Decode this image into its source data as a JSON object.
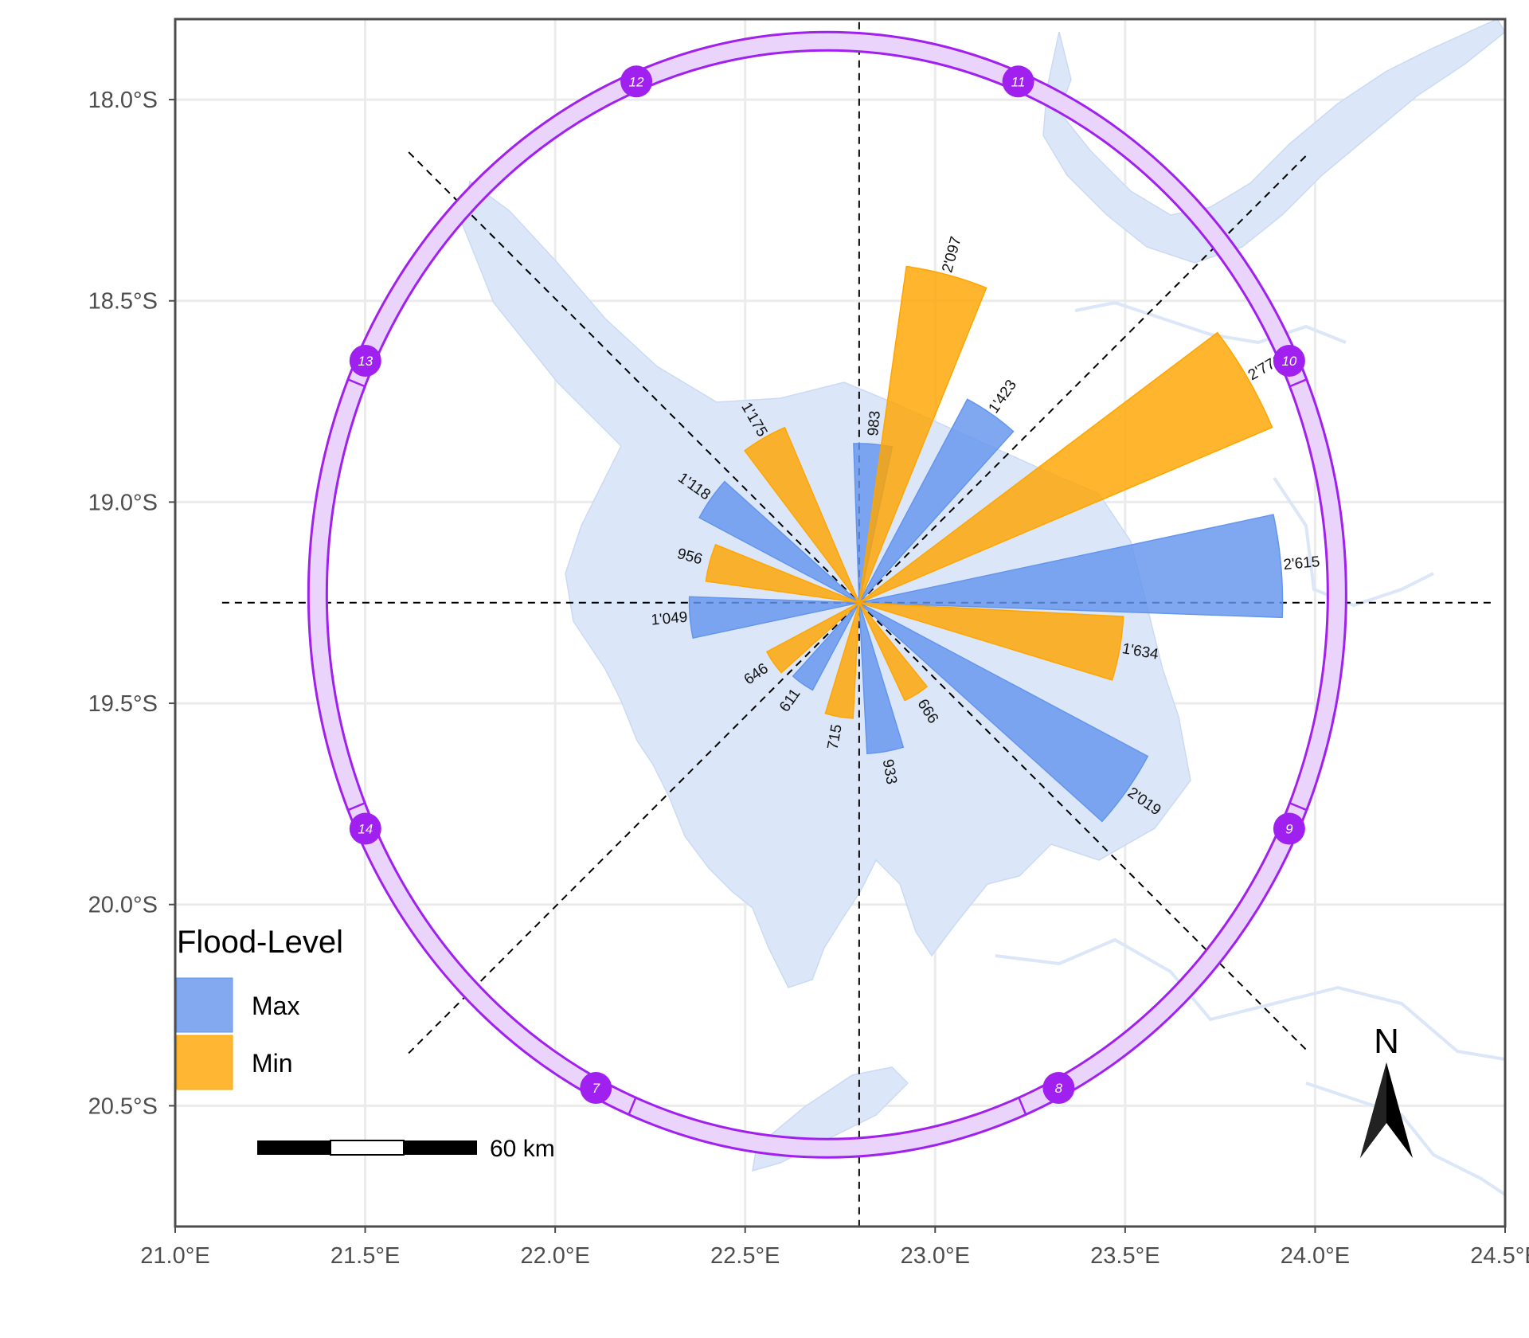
{
  "chart_data": {
    "type": "polar-bar-map",
    "x_axis": {
      "ticks": [
        "21.0°E",
        "21.5°E",
        "22.0°E",
        "22.5°E",
        "23.0°E",
        "23.5°E",
        "24.0°E",
        "24.5°E"
      ],
      "values": [
        21.0,
        21.5,
        22.0,
        22.5,
        23.0,
        23.5,
        24.0,
        24.5
      ],
      "range": [
        21.0,
        24.5
      ]
    },
    "y_axis": {
      "ticks": [
        "18.0°S",
        "18.5°S",
        "19.0°S",
        "19.5°S",
        "20.0°S",
        "20.5°S"
      ],
      "values": [
        -18.0,
        -18.5,
        -19.0,
        -19.5,
        -20.0,
        -20.5
      ],
      "range": [
        -20.8,
        -17.8
      ]
    },
    "grid": true,
    "center": {
      "lon": 22.8,
      "lat": -19.25
    },
    "bar_max_value": 3000,
    "month_ring_labels": [
      "7",
      "8",
      "9",
      "10",
      "11",
      "12",
      "13",
      "14"
    ],
    "series": [
      {
        "name": "Max",
        "color": "#6495ED",
        "bars": [
          {
            "dir": 5,
            "value": 983,
            "label": "983"
          },
          {
            "dir": 35,
            "value": 1423,
            "label": "1'423"
          },
          {
            "dir": 85,
            "value": 2615,
            "label": "2'615"
          },
          {
            "dir": 125,
            "value": 2019,
            "label": "2'019"
          },
          {
            "dir": 170,
            "value": 933,
            "label": "933"
          },
          {
            "dir": 215,
            "value": 611,
            "label": "611"
          },
          {
            "dir": 265,
            "value": 1049,
            "label": "1'049"
          },
          {
            "dir": 305,
            "value": 1118,
            "label": "1'118"
          }
        ]
      },
      {
        "name": "Min",
        "color": "#FFA500",
        "bars": [
          {
            "dir": 15,
            "value": 2097,
            "label": "2'097"
          },
          {
            "dir": 60,
            "value": 2771,
            "label": "2'771"
          },
          {
            "dir": 100,
            "value": 1634,
            "label": "1'634"
          },
          {
            "dir": 148,
            "value": 666,
            "label": "666"
          },
          {
            "dir": 190,
            "value": 715,
            "label": "715"
          },
          {
            "dir": 235,
            "value": 646,
            "label": "646"
          },
          {
            "dir": 285,
            "value": 956,
            "label": "956"
          },
          {
            "dir": 330,
            "value": 1175,
            "label": "1'175"
          }
        ]
      }
    ],
    "legend": {
      "title": "Flood-Level",
      "position": "bottom-left",
      "items": [
        "Max",
        "Min"
      ]
    },
    "scale_bar": {
      "label": "60 km"
    },
    "north_arrow": {
      "label": "N"
    }
  },
  "colors": {
    "max": "#6495ED",
    "min": "#FFA500",
    "ring": "#A020F0",
    "water": "#dbe6f8",
    "grid": "#ebebeb"
  }
}
